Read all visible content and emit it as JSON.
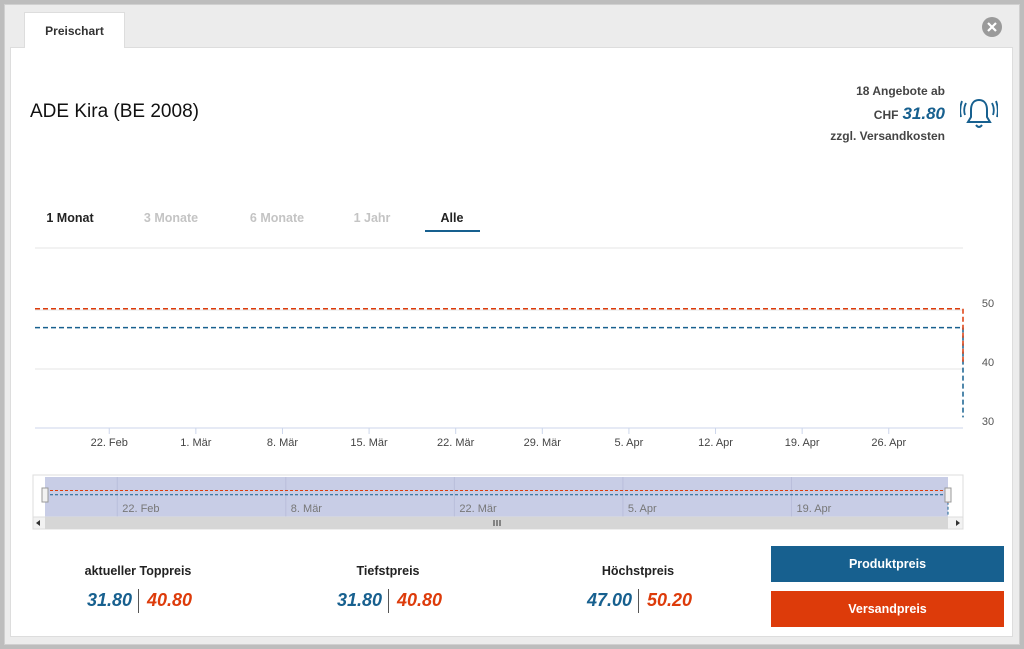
{
  "tab": {
    "label": "Preischart"
  },
  "header": {
    "title": "ADE Kira (BE 2008)",
    "offer_count": "18 Angebote ab",
    "currency": "CHF",
    "price": "31.80",
    "shipping_note": "zzgl. Versandkosten"
  },
  "ranges": [
    {
      "label": "1 Monat",
      "state": "enabled"
    },
    {
      "label": "3 Monate",
      "state": "disabled"
    },
    {
      "label": "6 Monate",
      "state": "disabled"
    },
    {
      "label": "1 Jahr",
      "state": "disabled"
    },
    {
      "label": "Alle",
      "state": "active"
    }
  ],
  "chart_data": {
    "type": "line",
    "x": [
      47,
      122,
      122
    ],
    "xlim": [
      47,
      122
    ],
    "xticks": [
      {
        "value": 53,
        "label": "22. Feb"
      },
      {
        "value": 60,
        "label": "1. Mär"
      },
      {
        "value": 67,
        "label": "8. Mär"
      },
      {
        "value": 74,
        "label": "15. Mär"
      },
      {
        "value": 81,
        "label": "22. Mär"
      },
      {
        "value": 88,
        "label": "29. Mär"
      },
      {
        "value": 95,
        "label": "5. Apr"
      },
      {
        "value": 102,
        "label": "12. Apr"
      },
      {
        "value": 109,
        "label": "19. Apr"
      },
      {
        "value": 116,
        "label": "26. Apr"
      }
    ],
    "ylim": [
      30,
      60.5
    ],
    "yticks": [
      30,
      40,
      50
    ],
    "grid": true,
    "line_style": "dashed",
    "series": [
      {
        "name": "Produktpreis",
        "color": "#17608f",
        "values": [
          47,
          47,
          31.8
        ]
      },
      {
        "name": "Versandpreis",
        "color": "#dd3b0a",
        "values": [
          50.2,
          50.2,
          40.8
        ]
      }
    ],
    "navigator": {
      "xticks": [
        {
          "value": 53,
          "label": "22. Feb"
        },
        {
          "value": 67,
          "label": "8. Mär"
        },
        {
          "value": 81,
          "label": "22. Mär"
        },
        {
          "value": 95,
          "label": "5. Apr"
        },
        {
          "value": 109,
          "label": "19. Apr"
        }
      ]
    }
  },
  "stats": [
    {
      "label": "aktueller Toppreis",
      "product": "31.80",
      "shipping": "40.80"
    },
    {
      "label": "Tiefstpreis",
      "product": "31.80",
      "shipping": "40.80"
    },
    {
      "label": "Höchstpreis",
      "product": "47.00",
      "shipping": "50.20"
    }
  ]
}
